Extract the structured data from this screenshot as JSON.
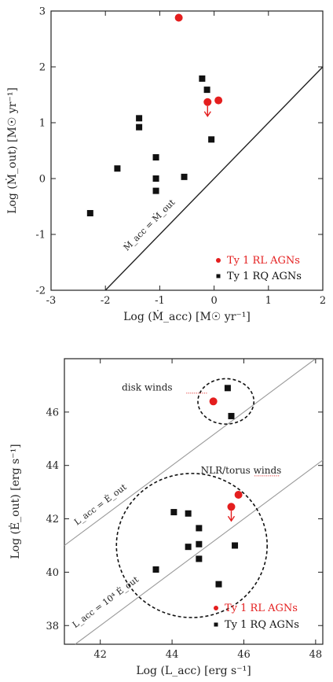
{
  "colors": {
    "rl": "#e41e1e",
    "rq": "#111111",
    "relation": "#9a9a9a",
    "axis": "#222222",
    "frame_bg": "#ffffff"
  },
  "chart_data": [
    {
      "type": "scatter",
      "xlabel": "Log (Ṁ_acc) [M☉ yr⁻¹]",
      "ylabel": "Log (Ṁ_out) [M☉ yr⁻¹]",
      "xlim": [
        -3,
        2
      ],
      "ylim": [
        -2,
        3
      ],
      "xticks": [
        -3,
        -2,
        -1,
        0,
        1,
        2
      ],
      "yticks": [
        -2,
        -1,
        0,
        1,
        2,
        3
      ],
      "grid": false,
      "legend_position": "bottom-right",
      "legend": [
        {
          "label": "Ty 1 RL AGNs",
          "marker": "circle",
          "color_key": "rl"
        },
        {
          "label": "Ty 1 RQ AGNs",
          "marker": "square",
          "color_key": "rq"
        }
      ],
      "relation_line": {
        "label": "Ṁ_acc = Ṁ_out",
        "x": [
          -2.1,
          2
        ],
        "y": [
          -2.1,
          2
        ]
      },
      "series": [
        {
          "name": "Ty 1 RL AGNs",
          "marker": "circle",
          "x": [
            -0.65,
            -0.12,
            0.08
          ],
          "y": [
            2.88,
            1.37,
            1.4
          ],
          "upper_limit": [
            false,
            true,
            false
          ]
        },
        {
          "name": "Ty 1 RQ AGNs",
          "marker": "square",
          "x": [
            -2.28,
            -1.78,
            -1.38,
            -1.38,
            -1.07,
            -1.07,
            -1.07,
            -0.55,
            -0.22,
            -0.13,
            -0.05
          ],
          "y": [
            -0.62,
            0.18,
            1.08,
            0.92,
            0.38,
            0.0,
            -0.22,
            0.03,
            1.79,
            1.59,
            0.7
          ]
        }
      ]
    },
    {
      "type": "scatter",
      "xlabel": "Log (L_acc) [erg s⁻¹]",
      "ylabel": "Log (Ė_out) [erg s⁻¹]",
      "xlim": [
        41,
        48.2
      ],
      "ylim": [
        37.3,
        48
      ],
      "xticks": [
        42,
        44,
        46,
        48
      ],
      "yticks": [
        38,
        40,
        42,
        44,
        46
      ],
      "grid": false,
      "legend_position": "bottom-right",
      "legend": [
        {
          "label": "Ty 1 RL AGNs",
          "marker": "circle",
          "color_key": "rl"
        },
        {
          "label": "Ty 1 RQ AGNs",
          "marker": "square",
          "color_key": "rq"
        }
      ],
      "relation_lines": [
        {
          "label": "L_acc = Ė_out",
          "x": [
            41,
            48.2
          ],
          "y": [
            41,
            48.2
          ]
        },
        {
          "label": "L_acc = 10⁴ Ė_out",
          "x": [
            41,
            48.2
          ],
          "y": [
            37,
            44.2
          ]
        }
      ],
      "annotations": [
        {
          "text": "disk winds",
          "x": 42.6,
          "y": 46.8
        },
        {
          "text": "NLR/torus winds",
          "x": 44.8,
          "y": 43.7
        }
      ],
      "ellipses": [
        {
          "name": "disk winds",
          "cx": 45.5,
          "cy": 46.4,
          "rx": 0.78,
          "ry": 0.85
        },
        {
          "name": "NLR/torus winds",
          "cx": 44.55,
          "cy": 41.0,
          "rx": 2.1,
          "ry": 2.7
        }
      ],
      "series": [
        {
          "name": "Ty 1 RL AGNs",
          "marker": "circle",
          "x": [
            45.15,
            45.65,
            45.85
          ],
          "y": [
            46.4,
            42.45,
            42.9
          ],
          "upper_limit": [
            false,
            true,
            false
          ]
        },
        {
          "name": "Ty 1 RQ AGNs",
          "marker": "square",
          "x": [
            45.55,
            45.65,
            44.05,
            44.45,
            44.75,
            44.75,
            44.45,
            44.75,
            45.75,
            43.55,
            45.3
          ],
          "y": [
            46.9,
            45.85,
            42.25,
            42.2,
            41.65,
            41.05,
            40.95,
            40.5,
            41.0,
            40.1,
            39.55
          ]
        }
      ]
    }
  ]
}
